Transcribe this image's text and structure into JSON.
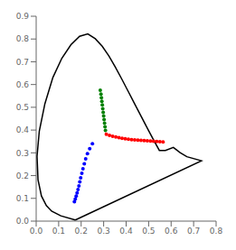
{
  "chart_data": {
    "type": "scatter",
    "xlim": [
      0,
      0.8
    ],
    "ylim": [
      0,
      0.9
    ],
    "xticks": [
      {
        "value": 0,
        "label": "0.0"
      },
      0.1,
      0.2,
      0.3,
      0.4,
      0.5,
      0.6,
      0.7,
      0.8
    ],
    "yticks": [
      {
        "value": 0,
        "label": "0.0"
      },
      0.1,
      0.2,
      0.3,
      0.4,
      0.5,
      0.6,
      0.7,
      0.8,
      0.9
    ],
    "grid": false,
    "series": [
      {
        "type": "line",
        "color": "#000000",
        "x": [
          0.1741,
          0.1096,
          0.0687,
          0.0453,
          0.0235,
          0.0082,
          0.0039,
          0.0139,
          0.0388,
          0.0743,
          0.1142,
          0.1547,
          0.1929,
          0.2296,
          0.2628,
          0.2937,
          0.323,
          0.3515,
          0.3804,
          0.4097,
          0.439,
          0.4683,
          0.4965,
          0.5232,
          0.5477,
          0.5745,
          0.61,
          0.64,
          0.67,
          0.7347,
          0.1741
        ],
        "values": [
          0.005,
          0.0232,
          0.044,
          0.0685,
          0.1103,
          0.1821,
          0.2848,
          0.3955,
          0.5156,
          0.631,
          0.7156,
          0.7748,
          0.812,
          0.8222,
          0.8012,
          0.768,
          0.726,
          0.6776,
          0.6244,
          0.5689,
          0.5127,
          0.4571,
          0.404,
          0.3547,
          0.3106,
          0.3106,
          0.3235,
          0.301,
          0.283,
          0.2653,
          0.005
        ]
      },
      {
        "type": "scatter",
        "color": "green",
        "x": [
          0.285,
          0.288,
          0.29,
          0.292,
          0.294,
          0.296,
          0.298,
          0.3,
          0.302,
          0.304,
          0.306,
          0.308
        ],
        "values": [
          0.575,
          0.558,
          0.542,
          0.526,
          0.51,
          0.494,
          0.478,
          0.462,
          0.446,
          0.43,
          0.414,
          0.398
        ]
      },
      {
        "type": "scatter",
        "color": "red",
        "x": [
          0.312,
          0.326,
          0.34,
          0.354,
          0.368,
          0.382,
          0.396,
          0.41,
          0.424,
          0.438,
          0.452,
          0.466,
          0.48,
          0.494,
          0.508,
          0.522,
          0.536,
          0.55,
          0.564
        ],
        "values": [
          0.382,
          0.377,
          0.373,
          0.37,
          0.367,
          0.364,
          0.362,
          0.36,
          0.358,
          0.357,
          0.356,
          0.355,
          0.354,
          0.353,
          0.352,
          0.351,
          0.35,
          0.349,
          0.348
        ]
      },
      {
        "type": "scatter",
        "color": "blue",
        "x": [
          0.17,
          0.174,
          0.178,
          0.182,
          0.186,
          0.19,
          0.194,
          0.198,
          0.203,
          0.208,
          0.214,
          0.22,
          0.228,
          0.238,
          0.25
        ],
        "values": [
          0.085,
          0.097,
          0.11,
          0.124,
          0.139,
          0.155,
          0.172,
          0.19,
          0.21,
          0.23,
          0.252,
          0.274,
          0.296,
          0.318,
          0.34
        ]
      }
    ]
  }
}
